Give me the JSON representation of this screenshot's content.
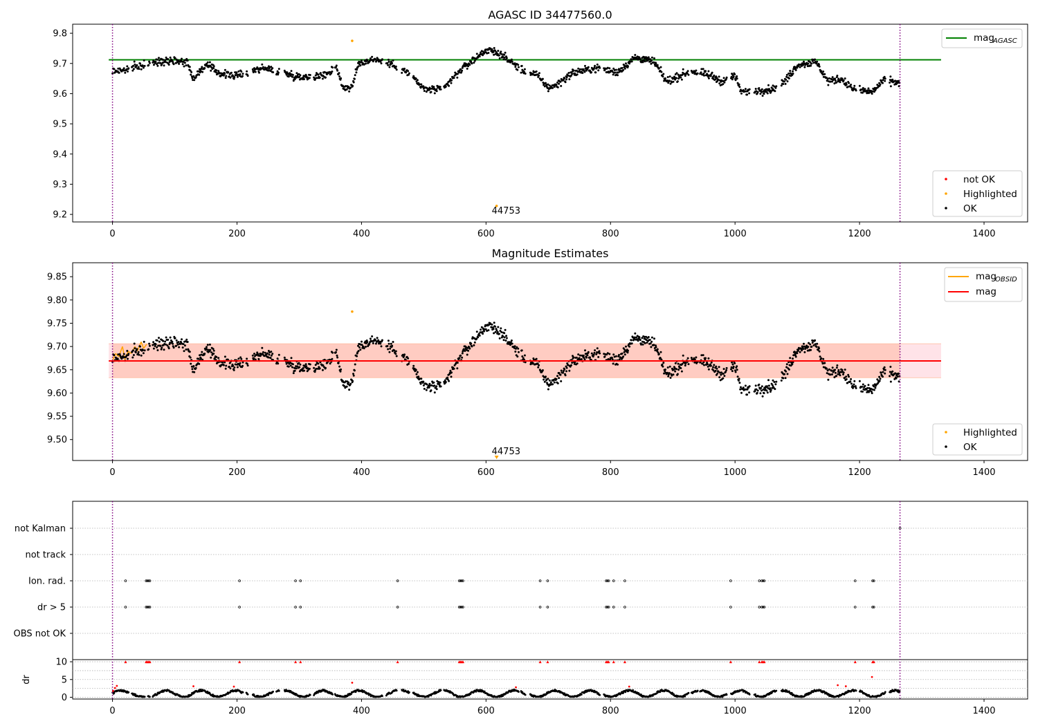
{
  "chart_data": [
    {
      "type": "scatter",
      "title": "AGASC ID 34477560.0",
      "xlim": [
        -64,
        1470
      ],
      "ylim": [
        9.175,
        9.83
      ],
      "xticks": [
        "0",
        "200",
        "400",
        "600",
        "800",
        "1000",
        "1200",
        "1400"
      ],
      "yticks": [
        "9.2",
        "9.3",
        "9.4",
        "9.5",
        "9.6",
        "9.7",
        "9.8"
      ],
      "legend_lines": [
        {
          "label": "mag",
          "sub": "AGASC",
          "color": "#008000"
        }
      ],
      "legend_points": [
        {
          "label": "not OK",
          "color": "#ff0000"
        },
        {
          "label": "Highlighted",
          "color": "#ffa500"
        },
        {
          "label": "OK",
          "color": "#000000"
        }
      ],
      "hline": {
        "y": 9.712,
        "color": "#008000",
        "x_range": [
          -6,
          1331
        ]
      },
      "vlines": [
        0,
        1265
      ],
      "highlighted": [
        {
          "x": 385,
          "y": 9.775
        },
        {
          "x": 617,
          "y": 9.228
        }
      ],
      "annotation": {
        "text": "44753",
        "x": 617,
        "y": 9.205
      },
      "series_note": "Approximately 1500 OK magnitude estimates between about 9.57 and 9.77; rendered from the mag_profile below.",
      "mag_profile": [
        [
          0,
          9.675
        ],
        [
          20,
          9.678
        ],
        [
          50,
          9.695
        ],
        [
          90,
          9.712
        ],
        [
          120,
          9.705
        ],
        [
          130,
          9.65
        ],
        [
          150,
          9.695
        ],
        [
          175,
          9.665
        ],
        [
          200,
          9.66
        ],
        [
          240,
          9.685
        ],
        [
          270,
          9.672
        ],
        [
          300,
          9.655
        ],
        [
          340,
          9.66
        ],
        [
          360,
          9.69
        ],
        [
          370,
          9.62
        ],
        [
          385,
          9.62
        ],
        [
          395,
          9.7
        ],
        [
          420,
          9.715
        ],
        [
          460,
          9.69
        ],
        [
          480,
          9.66
        ],
        [
          500,
          9.615
        ],
        [
          530,
          9.612
        ],
        [
          560,
          9.68
        ],
        [
          580,
          9.712
        ],
        [
          600,
          9.745
        ],
        [
          620,
          9.735
        ],
        [
          640,
          9.705
        ],
        [
          660,
          9.675
        ],
        [
          680,
          9.665
        ],
        [
          700,
          9.62
        ],
        [
          710,
          9.625
        ],
        [
          740,
          9.67
        ],
        [
          780,
          9.685
        ],
        [
          810,
          9.67
        ],
        [
          840,
          9.72
        ],
        [
          870,
          9.705
        ],
        [
          890,
          9.64
        ],
        [
          930,
          9.675
        ],
        [
          960,
          9.66
        ],
        [
          980,
          9.64
        ],
        [
          1000,
          9.66
        ],
        [
          1010,
          9.605
        ],
        [
          1060,
          9.615
        ],
        [
          1080,
          9.64
        ],
        [
          1100,
          9.695
        ],
        [
          1130,
          9.705
        ],
        [
          1150,
          9.64
        ],
        [
          1170,
          9.65
        ],
        [
          1190,
          9.615
        ],
        [
          1220,
          9.605
        ],
        [
          1240,
          9.645
        ],
        [
          1265,
          9.635
        ]
      ]
    },
    {
      "type": "scatter",
      "title": "Magnitude Estimates",
      "xlim": [
        -64,
        1470
      ],
      "ylim": [
        9.455,
        9.88
      ],
      "xticks": [
        "0",
        "200",
        "400",
        "600",
        "800",
        "1000",
        "1200",
        "1400"
      ],
      "yticks": [
        "9.50",
        "9.55",
        "9.60",
        "9.65",
        "9.70",
        "9.75",
        "9.80",
        "9.85"
      ],
      "legend_lines": [
        {
          "label": "mag",
          "sub": "OBSID",
          "color": "#ffa500"
        },
        {
          "label": "mag",
          "sub": "",
          "color": "#ff0000"
        }
      ],
      "legend_points": [
        {
          "label": "Highlighted",
          "color": "#ffa500"
        },
        {
          "label": "OK",
          "color": "#000000"
        }
      ],
      "hline": {
        "y": 9.669,
        "color": "#ff0000",
        "x_range": [
          -6,
          1331
        ]
      },
      "band": {
        "y0": 9.633,
        "y1": 9.706,
        "x_range": [
          -6,
          1331
        ]
      },
      "inner_band_x": [
        0,
        1265
      ],
      "vlines": [
        0,
        1265
      ],
      "highlighted": [
        {
          "x": 385,
          "y": 9.775
        },
        {
          "x": 617,
          "y": 9.458
        }
      ],
      "annotation": {
        "text": "44753",
        "x": 617,
        "y": 9.47
      },
      "obsid_segments": [
        [
          0,
          9.67
        ],
        [
          5,
          9.685
        ],
        [
          10,
          9.678
        ],
        [
          16,
          9.7
        ],
        [
          20,
          9.672
        ],
        [
          25,
          9.69
        ],
        [
          30,
          9.685
        ],
        [
          36,
          9.7
        ],
        [
          40,
          9.69
        ],
        [
          46,
          9.71
        ],
        [
          50,
          9.696
        ],
        [
          55,
          9.705
        ]
      ]
    },
    {
      "type": "scatter",
      "ylim_flags": [
        0,
        6
      ],
      "flag_labels": [
        "not Kalman",
        "not track",
        "Ion. rad.",
        "dr > 5",
        "OBS not OK"
      ],
      "flags": {
        "not Kalman": [
          1265
        ],
        "not track": [],
        "Ion. rad.": [
          21,
          54,
          56,
          58,
          60,
          204,
          294,
          302,
          458,
          557,
          559,
          561,
          563,
          687,
          699,
          793,
          795,
          797,
          805,
          823,
          993,
          1039,
          1043,
          1045,
          1047,
          1193,
          1221,
          1223
        ],
        "dr > 5": [
          21,
          54,
          56,
          58,
          60,
          204,
          294,
          302,
          458,
          557,
          559,
          561,
          563,
          687,
          699,
          793,
          795,
          797,
          805,
          823,
          993,
          1039,
          1043,
          1045,
          1047,
          1193,
          1221,
          1223
        ],
        "OBS not OK": []
      },
      "dr": {
        "ylabel": "dr",
        "yticks": [
          "0",
          "5",
          "10"
        ],
        "ylim": [
          -0.5,
          10.6
        ],
        "clipped_red": [
          21,
          54,
          56,
          58,
          60,
          204,
          294,
          302,
          458,
          557,
          559,
          561,
          563,
          687,
          699,
          793,
          795,
          797,
          805,
          823,
          993,
          1039,
          1043,
          1045,
          1047,
          1193,
          1221,
          1223
        ],
        "red_points": [
          [
            1,
            1.8
          ],
          [
            4,
            2.6
          ],
          [
            7,
            3.2
          ],
          [
            130,
            3.1
          ],
          [
            195,
            3.0
          ],
          [
            385,
            4.1
          ],
          [
            648,
            2.8
          ],
          [
            830,
            3.0
          ],
          [
            1165,
            3.4
          ],
          [
            1178,
            3.1
          ],
          [
            1220,
            5.7
          ]
        ]
      }
    }
  ]
}
